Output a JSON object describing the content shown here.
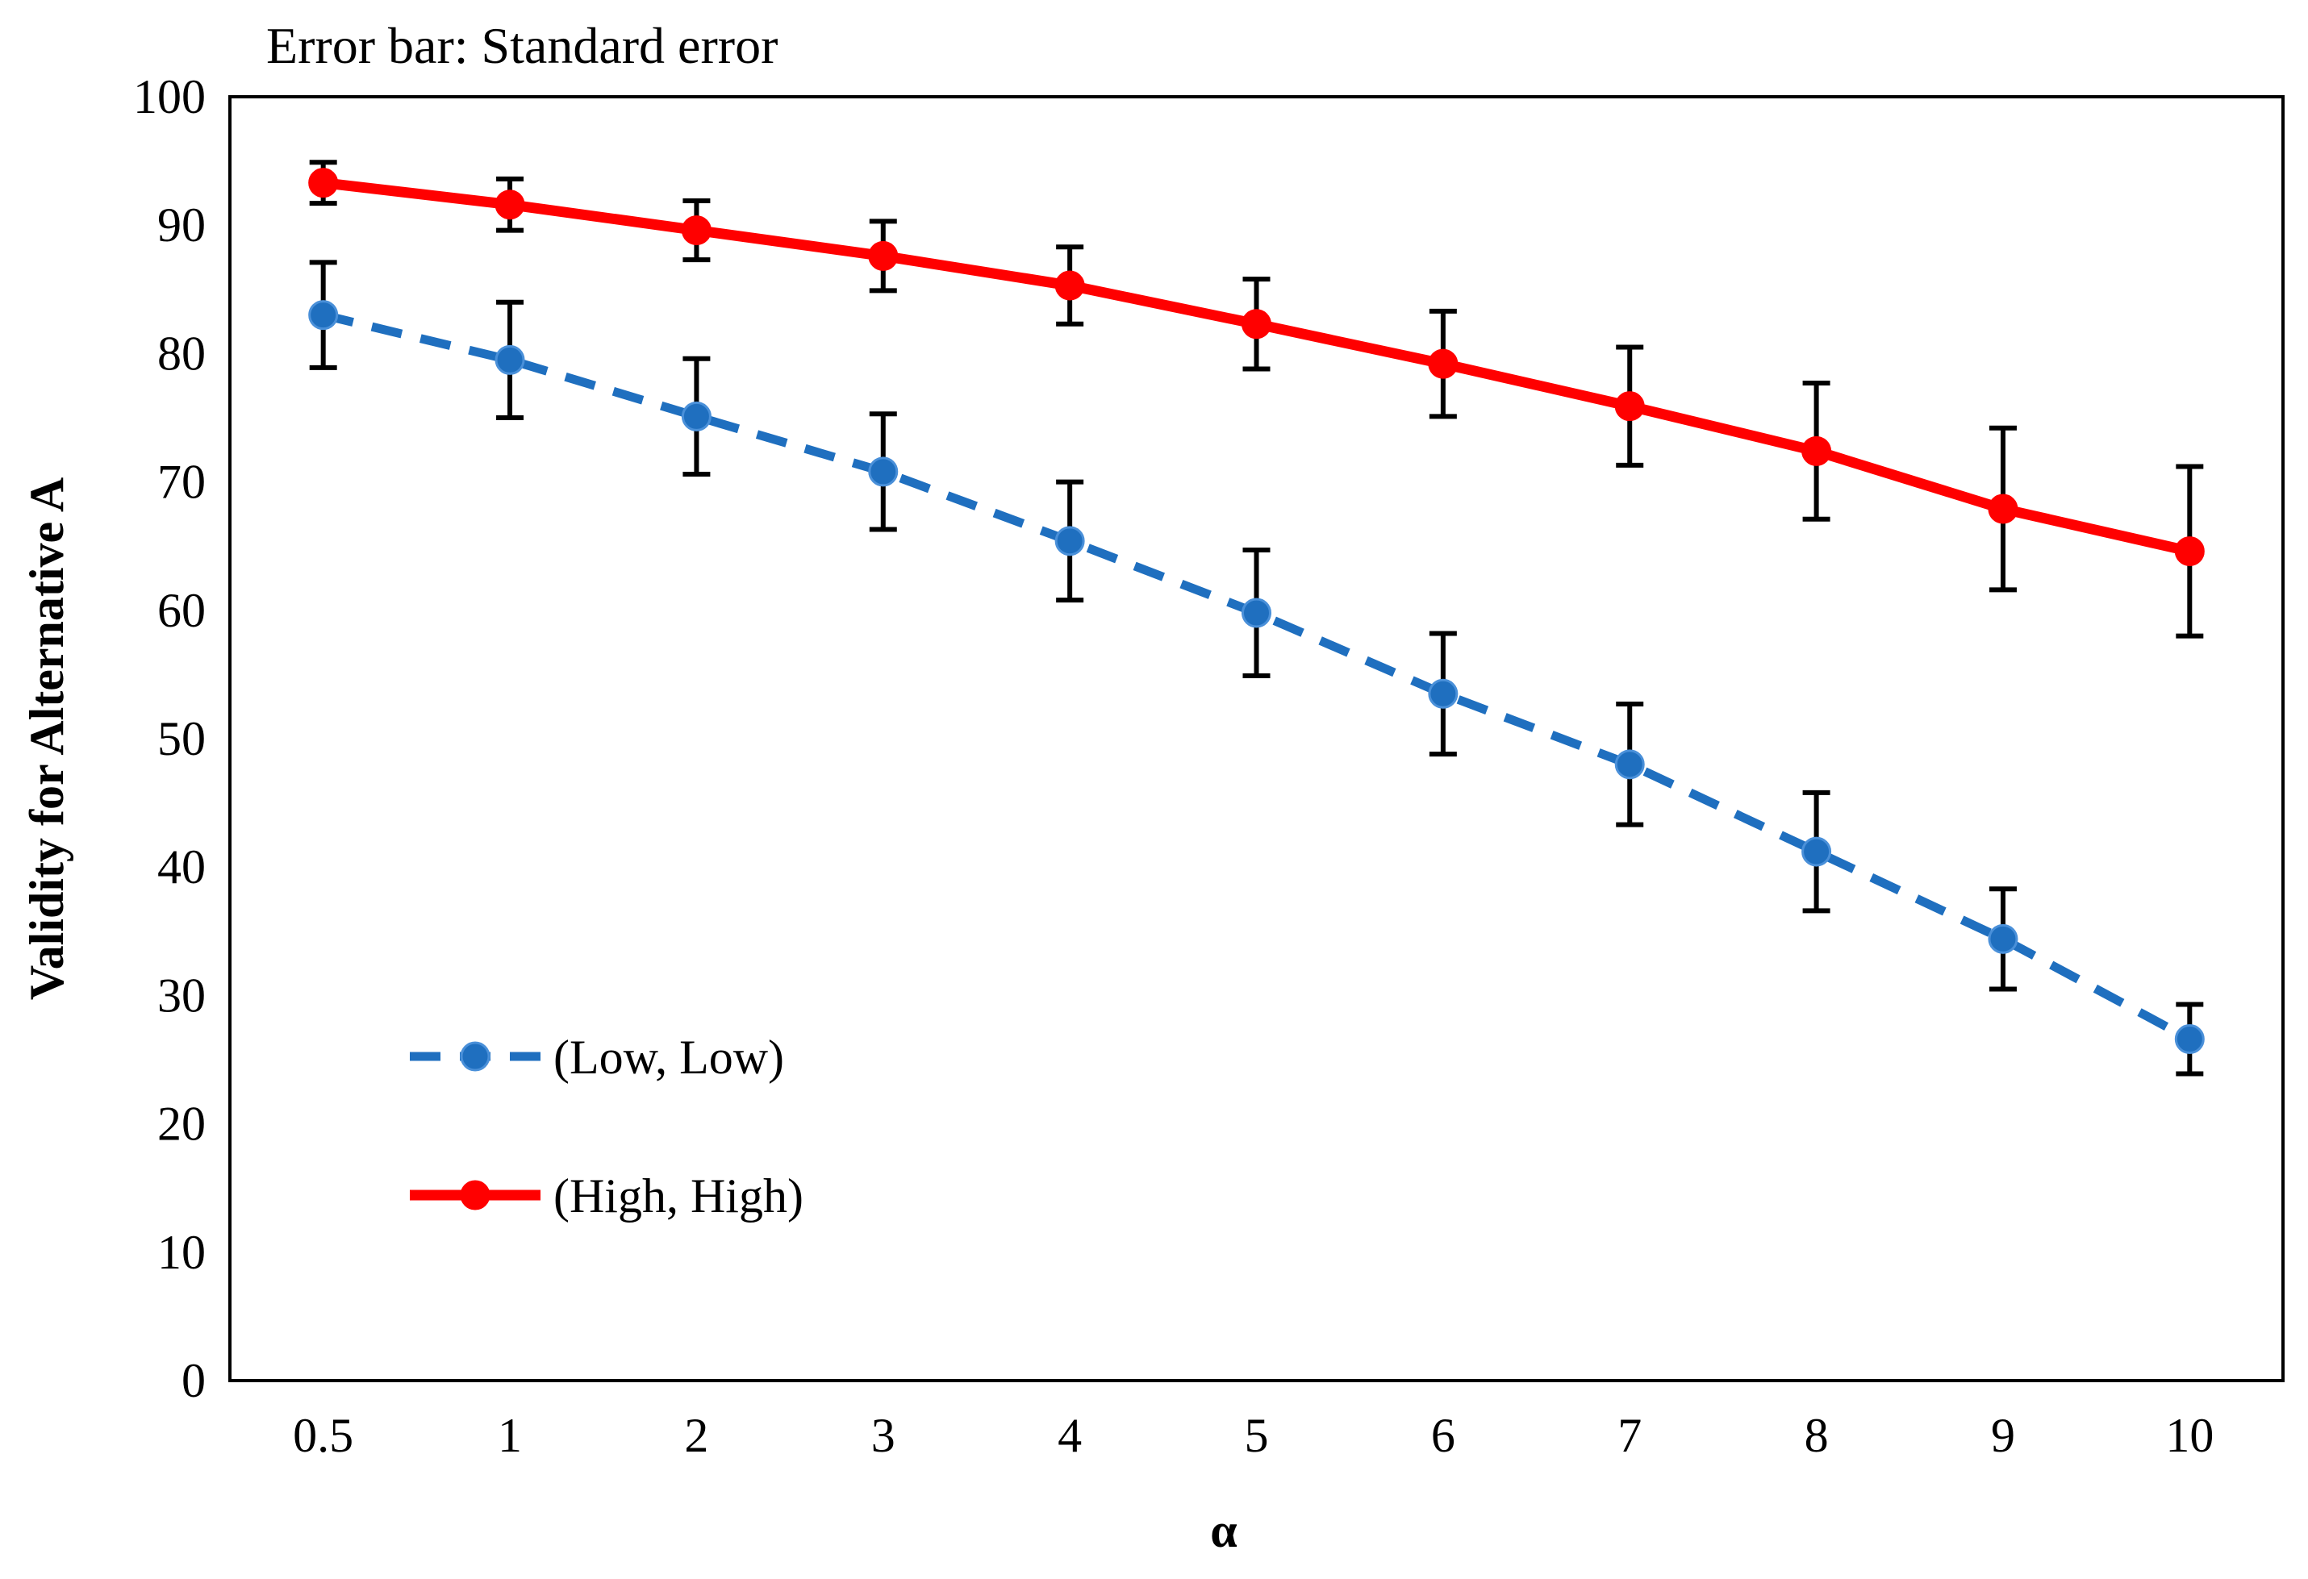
{
  "chart_data": {
    "type": "line",
    "annotation": "Error bar: Standard error",
    "xlabel": "α",
    "ylabel": "Validity for Alternative A",
    "categories": [
      "0.5",
      "1",
      "2",
      "3",
      "4",
      "5",
      "6",
      "7",
      "8",
      "9",
      "10"
    ],
    "ylim": [
      0,
      100
    ],
    "yticks": [
      "0",
      "10",
      "20",
      "30",
      "40",
      "50",
      "60",
      "70",
      "80",
      "90",
      "100"
    ],
    "grid": false,
    "legend_position": "bottom-left",
    "series": [
      {
        "name": "(Low, Low)",
        "color": "#1F6FBF",
        "line_style": "dashed",
        "values": [
          83.0,
          79.5,
          75.1,
          70.8,
          65.4,
          59.8,
          53.5,
          48.0,
          41.2,
          34.4,
          26.6
        ],
        "errors": [
          4.1,
          4.5,
          4.5,
          4.5,
          4.6,
          4.9,
          4.7,
          4.7,
          4.6,
          3.9,
          2.7
        ]
      },
      {
        "name": "(High, High)",
        "color": "#FF0000",
        "line_style": "solid",
        "values": [
          93.3,
          91.6,
          89.6,
          87.6,
          85.3,
          82.3,
          79.2,
          75.9,
          72.4,
          67.9,
          64.6
        ],
        "errors": [
          1.6,
          2.0,
          2.3,
          2.7,
          3.0,
          3.5,
          4.1,
          4.6,
          5.3,
          6.3,
          6.6
        ]
      }
    ]
  }
}
